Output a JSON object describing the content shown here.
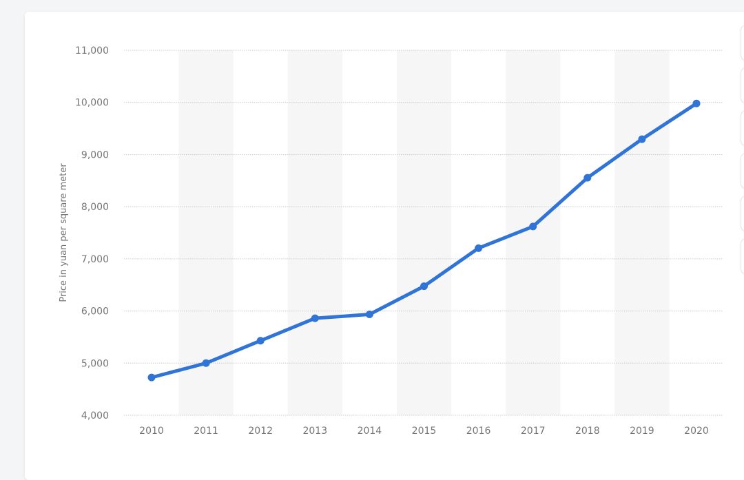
{
  "chart_data": {
    "type": "line",
    "title": "",
    "xlabel": "",
    "ylabel": "Price in yuan per square meter",
    "categories": [
      "2010",
      "2011",
      "2012",
      "2013",
      "2014",
      "2015",
      "2016",
      "2017",
      "2018",
      "2019",
      "2020"
    ],
    "series": [
      {
        "values": [
          4725,
          5000,
          5430,
          5860,
          5935,
          6475,
          7205,
          7620,
          8555,
          9295,
          9980
        ]
      }
    ],
    "ylim": [
      4000,
      11000
    ],
    "yticks": [
      "4,000",
      "5,000",
      "6,000",
      "7,000",
      "8,000",
      "9,000",
      "10,000",
      "11,000"
    ],
    "grid": true,
    "legend": "none",
    "colors": {
      "line": "#2f74d6",
      "band": "#f6f6f6",
      "grid": "#c9c9c9",
      "text": "#757575"
    }
  },
  "toolbar": {
    "buttons": [
      "star-icon",
      "bell-icon",
      "settings-icon",
      "share-icon",
      "quote-icon",
      "print-icon"
    ]
  }
}
